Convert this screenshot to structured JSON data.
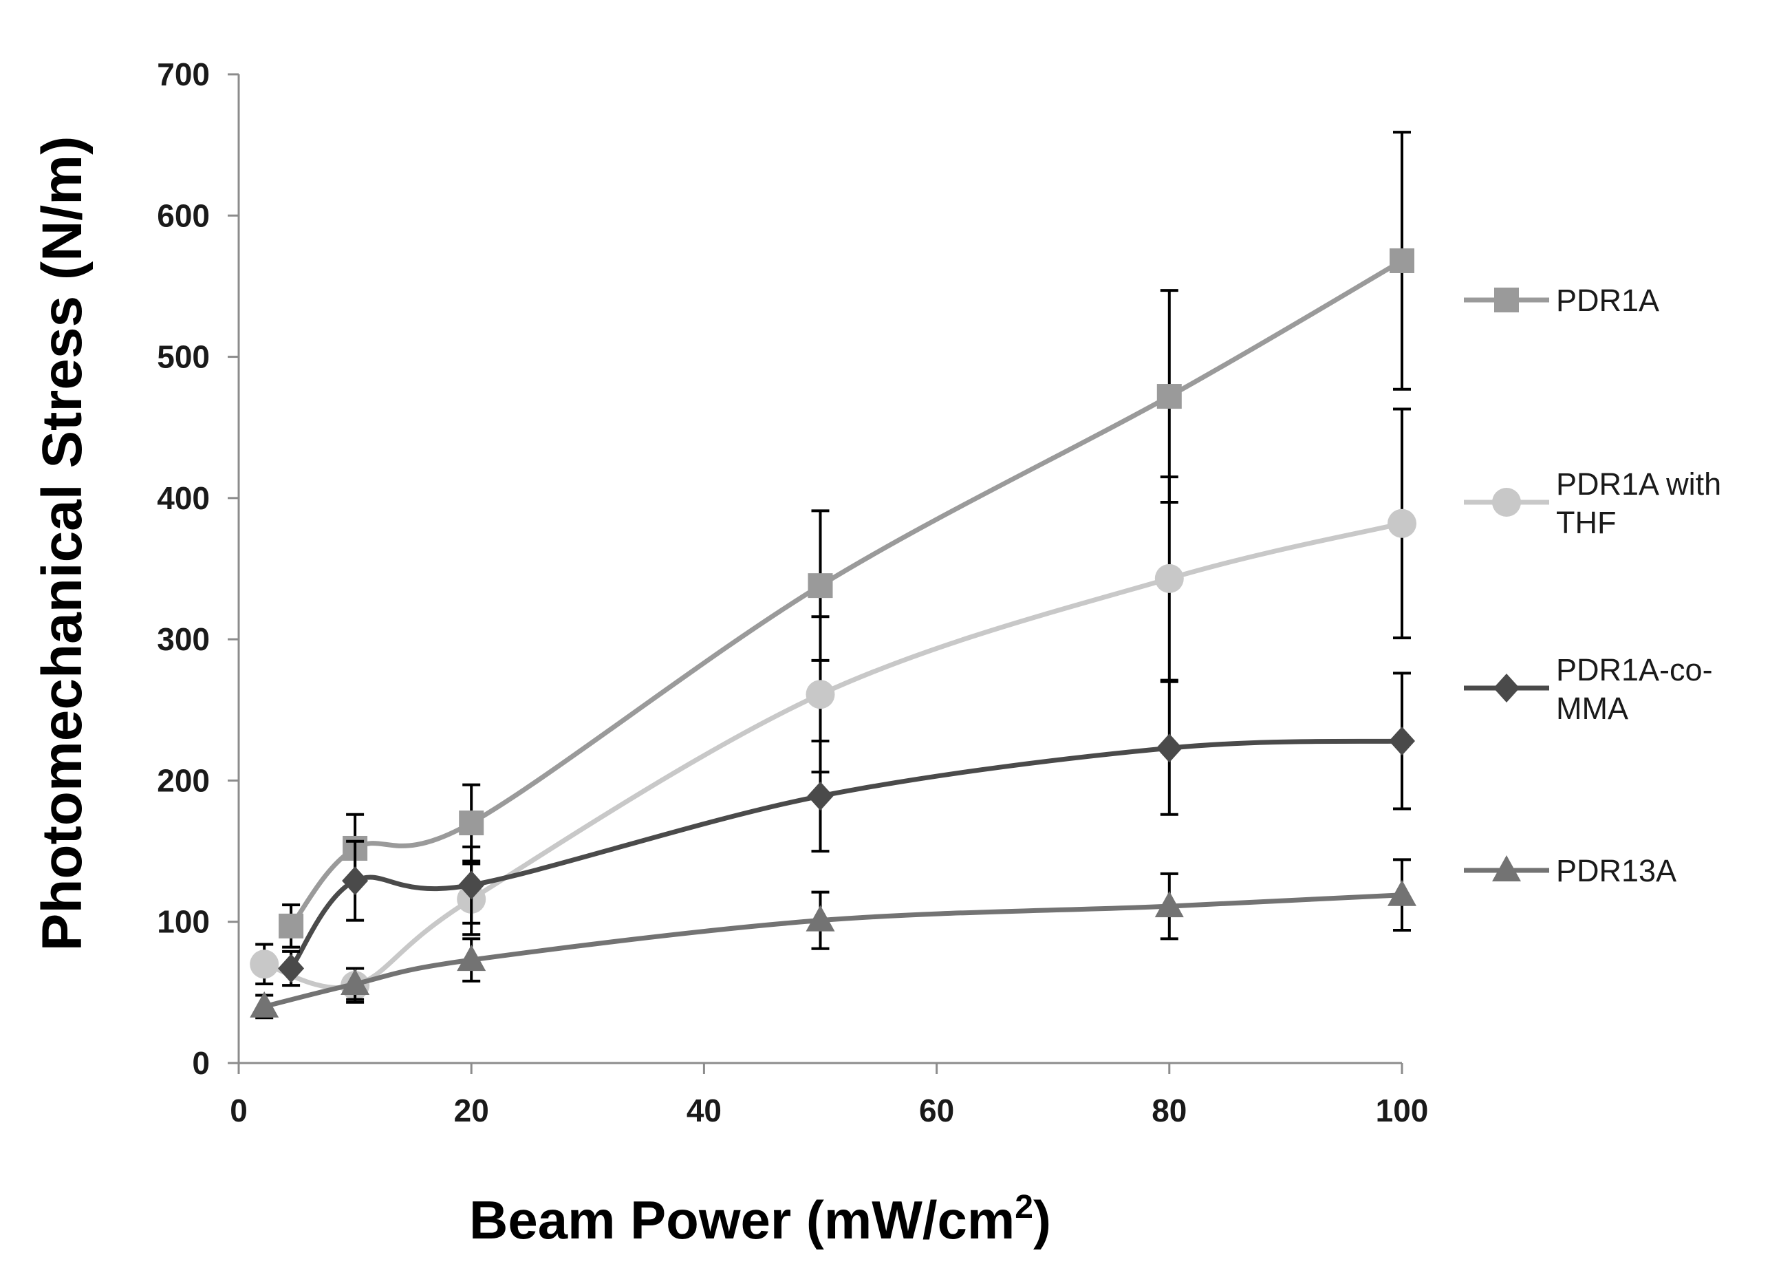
{
  "chart_data": {
    "type": "line",
    "title": "",
    "xlabel": "Beam Power (mW/cm",
    "xlabel_superscript": "2",
    "xlabel_suffix": ")",
    "ylabel": "Photomechanical Stress (N/m)",
    "xlim": [
      0,
      100
    ],
    "ylim": [
      0,
      700
    ],
    "xticks": [
      "0",
      "20",
      "40",
      "60",
      "80",
      "100"
    ],
    "yticks": [
      "0",
      "100",
      "200",
      "300",
      "400",
      "500",
      "600",
      "700"
    ],
    "grid": false,
    "legend_position": "right",
    "series": [
      {
        "name": "PDR1A",
        "legend_lines": [
          "PDR1A"
        ],
        "color": "#9a9a9a",
        "marker": "square",
        "x": [
          4.5,
          10,
          20,
          50,
          80,
          100
        ],
        "y": [
          97,
          152,
          170,
          338,
          472,
          568
        ],
        "err": [
          15,
          24,
          27,
          53,
          75,
          91
        ]
      },
      {
        "name": "PDR1A with THF",
        "legend_lines": [
          "PDR1A with",
          "THF"
        ],
        "color": "#c8c8c8",
        "marker": "circle",
        "x": [
          2.2,
          10,
          20,
          50,
          80,
          100
        ],
        "y": [
          70,
          55,
          116,
          261,
          343,
          382
        ],
        "err": [
          14,
          12,
          25,
          55,
          72,
          81
        ]
      },
      {
        "name": "PDR1A-co-MMA",
        "legend_lines": [
          "PDR1A-co-",
          "MMA"
        ],
        "color": "#4a4a4a",
        "marker": "diamond",
        "x": [
          4.5,
          10,
          20,
          50,
          80,
          100
        ],
        "y": [
          67,
          129,
          126,
          189,
          223,
          228
        ],
        "err": [
          12,
          28,
          27,
          39,
          47,
          48
        ]
      },
      {
        "name": "PDR13A",
        "legend_lines": [
          "PDR13A"
        ],
        "color": "#737373",
        "marker": "triangle",
        "x": [
          2.2,
          10,
          20,
          50,
          80,
          100
        ],
        "y": [
          40,
          56,
          73,
          101,
          111,
          119
        ],
        "err": [
          8,
          11,
          15,
          20,
          23,
          25
        ]
      }
    ]
  }
}
